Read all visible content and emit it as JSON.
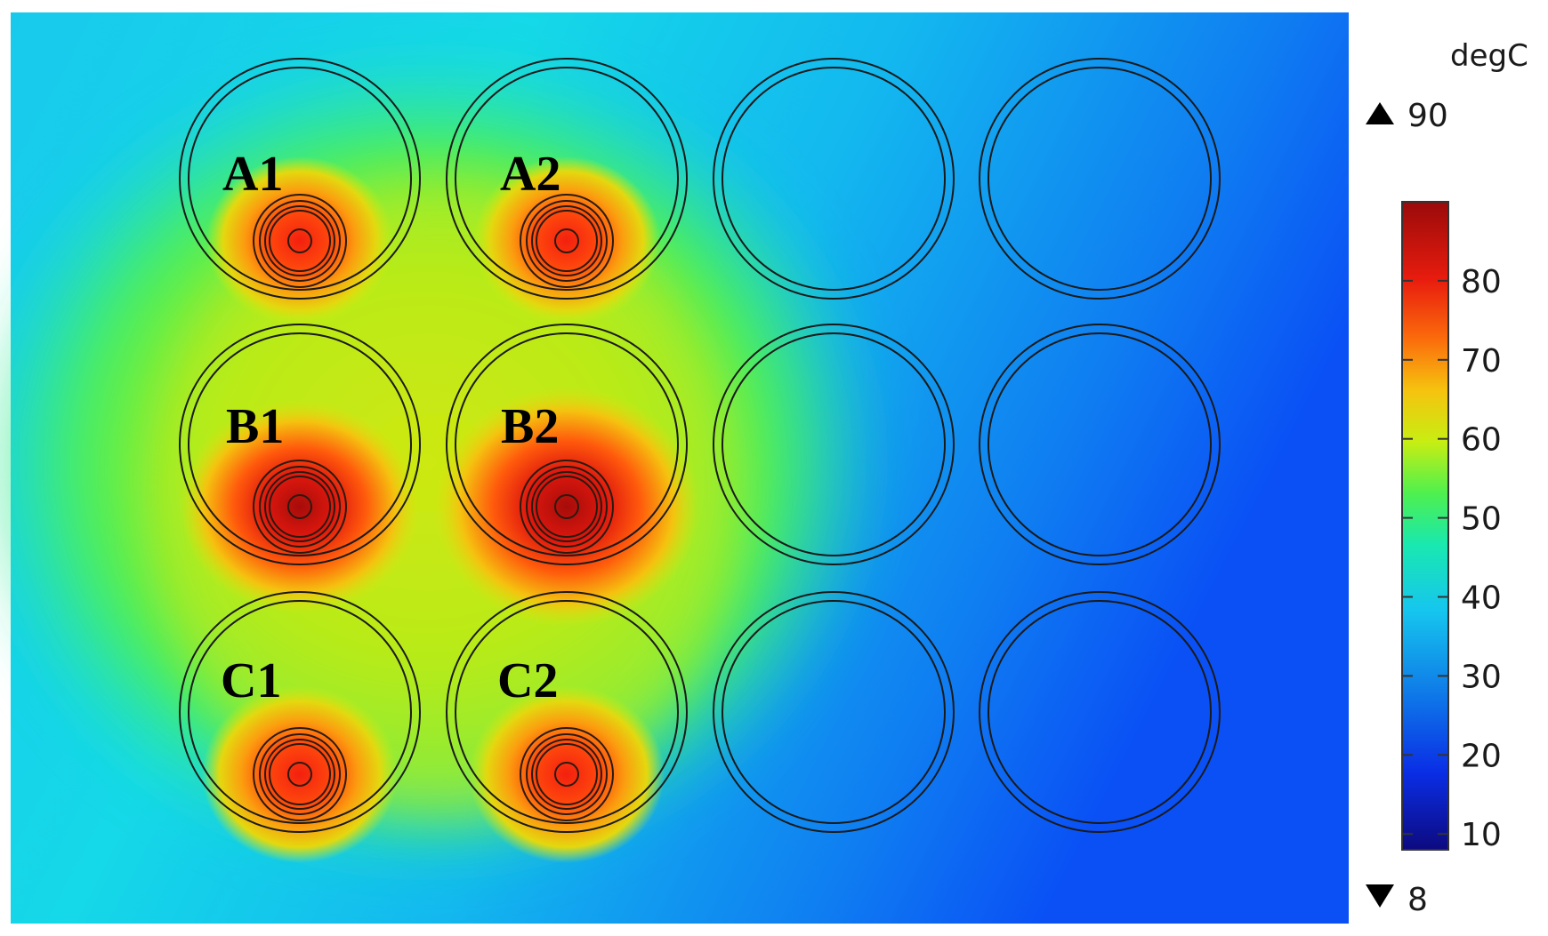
{
  "legend": {
    "unit": "degC",
    "max_label": "90",
    "min_label": "8",
    "range": [
      8,
      90
    ],
    "ticks": [
      "80",
      "70",
      "60",
      "50",
      "40",
      "30",
      "20",
      "10"
    ],
    "tick_values": [
      80,
      70,
      60,
      50,
      40,
      30,
      20,
      10
    ],
    "colormap": [
      "#0d0a80",
      "#0a2ee6",
      "#0f7fe8",
      "#16c6ee",
      "#19e8b0",
      "#4ef04e",
      "#c8ee12",
      "#f6c20f",
      "#fb6a0c",
      "#e81c0e",
      "#9a0a0a"
    ]
  },
  "wells": {
    "labels": [
      "A1",
      "A2",
      "B1",
      "B2",
      "C1",
      "C2"
    ]
  },
  "colors": {
    "background_cool": "#0a55f5",
    "field_warm": "#b8ee12",
    "hot_core": "#ff2010"
  }
}
